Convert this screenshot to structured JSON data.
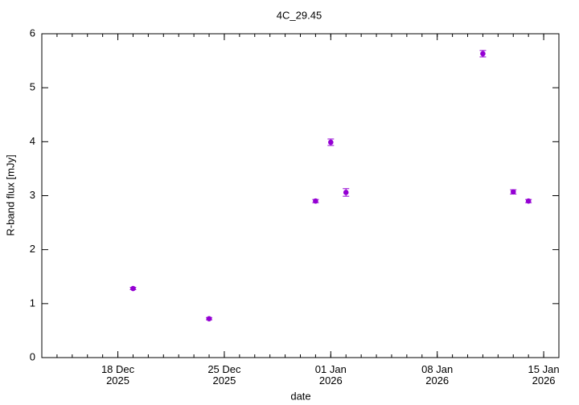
{
  "chart_data": {
    "type": "scatter",
    "title": "4C_29.45",
    "x_label": "date",
    "y_label": "R-band flux [mJy]",
    "x": [
      "2025-12-19",
      "2025-12-24",
      "2025-12-31",
      "2026-01-01",
      "2026-01-02",
      "2026-01-11",
      "2026-01-13",
      "2026-01-14"
    ],
    "series": [
      {
        "color": "#9400d3",
        "values": [
          1.28,
          0.72,
          2.9,
          3.99,
          3.06,
          5.63,
          3.07,
          2.9
        ],
        "errors": [
          0.02,
          0.02,
          0.03,
          0.06,
          0.07,
          0.06,
          0.04,
          0.03
        ]
      }
    ],
    "xlim": [
      "2025-12-13",
      "2026-01-16"
    ],
    "xticks": [
      {
        "value": "2025-12-18",
        "label": "18 Dec\n2025"
      },
      {
        "value": "2025-12-25",
        "label": "25 Dec\n2025"
      },
      {
        "value": "2026-01-01",
        "label": "01 Jan\n2026"
      },
      {
        "value": "2026-01-08",
        "label": "08 Jan\n2026"
      },
      {
        "value": "2026-01-15",
        "label": "15 Jan\n2026"
      }
    ],
    "ylim": [
      0,
      6
    ],
    "yticks": [
      0,
      1,
      2,
      3,
      4,
      5,
      6
    ]
  }
}
